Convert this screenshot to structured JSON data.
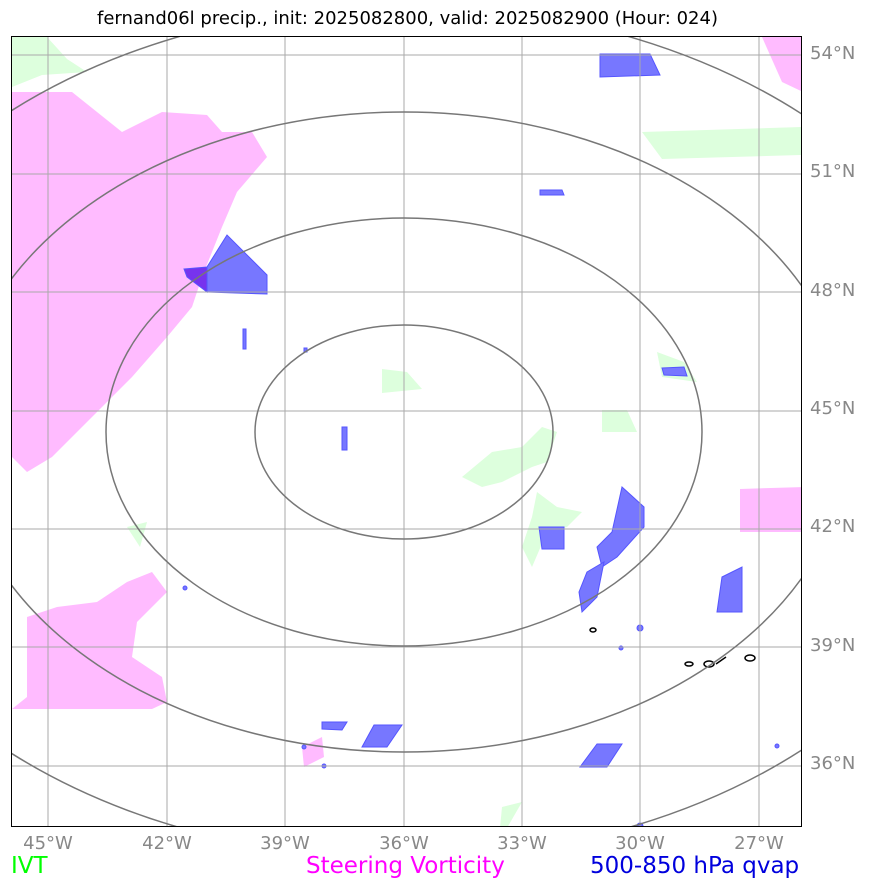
{
  "title": "fernand06l precip., init: 2025082800, valid: 2025082900 (Hour: 024)",
  "lat_labels": [
    "54°N",
    "51°N",
    "48°N",
    "45°N",
    "42°N",
    "39°N",
    "36°N"
  ],
  "lon_labels": [
    "45°W",
    "42°W",
    "39°W",
    "36°W",
    "33°W",
    "30°W",
    "27°W"
  ],
  "legend": {
    "ivt": "IVT",
    "steering": "Steering Vorticity",
    "qvap": "500-850 hPa qvap"
  },
  "colors": {
    "ivt": "#00ff00",
    "steering": "#ff00ff",
    "qvap": "#0000dd",
    "ivt_fill": "#ddffdd",
    "steering_fill": "#ffbbff",
    "qvap_fill": "#7777ff",
    "gridline": "#aaaaaa",
    "range_ring": "#777777"
  }
}
